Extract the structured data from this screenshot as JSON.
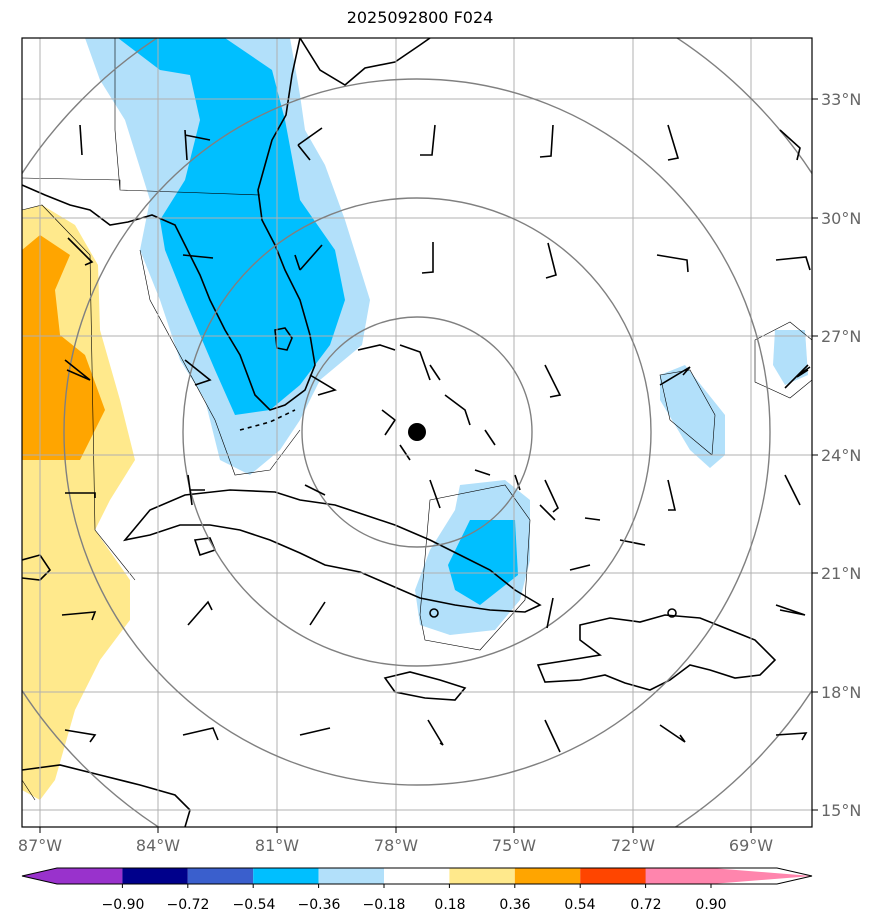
{
  "title": "2025092800 F024",
  "map": {
    "lon_ticks": [
      "87°W",
      "84°W",
      "81°W",
      "78°W",
      "75°W",
      "72°W",
      "69°W"
    ],
    "lat_ticks": [
      "33°N",
      "30°N",
      "27°N",
      "24°N",
      "21°N",
      "18°N",
      "15°N"
    ],
    "center_marker": "storm-center",
    "shading_colors": {
      "light_blue": "#b2e0fa",
      "blue": "#00bfff",
      "light_yellow": "#ffe98c",
      "orange": "#ffa500"
    }
  },
  "colorbar": {
    "labels": [
      "−0.90",
      "−0.72",
      "−0.54",
      "−0.36",
      "−0.18",
      "0.18",
      "0.36",
      "0.54",
      "0.72",
      "0.90"
    ],
    "colors": [
      "#9932cc",
      "#00008b",
      "#3a5fcd",
      "#00bfff",
      "#b2e0fa",
      "#ffffff",
      "#ffe98c",
      "#ffa500",
      "#ff4500",
      "#b22222",
      "#ff85ad"
    ]
  }
}
